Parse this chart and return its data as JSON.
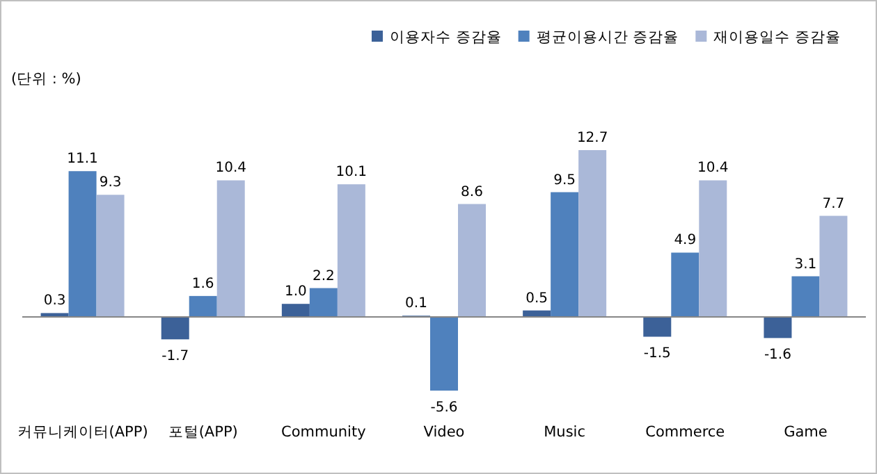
{
  "chart_data": {
    "type": "bar",
    "categories": [
      "커뮤니케이터(APP)",
      "포털(APP)",
      "Community",
      "Video",
      "Music",
      "Commerce",
      "Game"
    ],
    "series": [
      {
        "name": "이용자수 증감율",
        "color": "#3c6198",
        "values": [
          0.3,
          -1.7,
          1.0,
          0.1,
          0.5,
          -1.5,
          -1.6
        ],
        "value_labels": [
          "0.3",
          "-1.7",
          "1.0",
          "0.1",
          "0.5",
          "-1.5",
          "-1.6"
        ]
      },
      {
        "name": "평균이용시간 증감율",
        "color": "#4f81bd",
        "values": [
          11.1,
          1.6,
          2.2,
          -5.6,
          9.5,
          4.9,
          3.1
        ],
        "value_labels": [
          "11.1",
          "1.6",
          "2.2",
          "-5.6",
          "9.5",
          "4.9",
          "3.1"
        ]
      },
      {
        "name": "재이용일수 증감율",
        "color": "#aab8d8",
        "values": [
          9.3,
          10.4,
          10.1,
          8.6,
          12.7,
          10.4,
          7.7
        ],
        "value_labels": [
          "9.3",
          "10.4",
          "10.1",
          "8.6",
          "12.7",
          "10.4",
          "7.7"
        ]
      }
    ],
    "legend": "top right",
    "annotations": [
      "(단위 : %)"
    ]
  }
}
